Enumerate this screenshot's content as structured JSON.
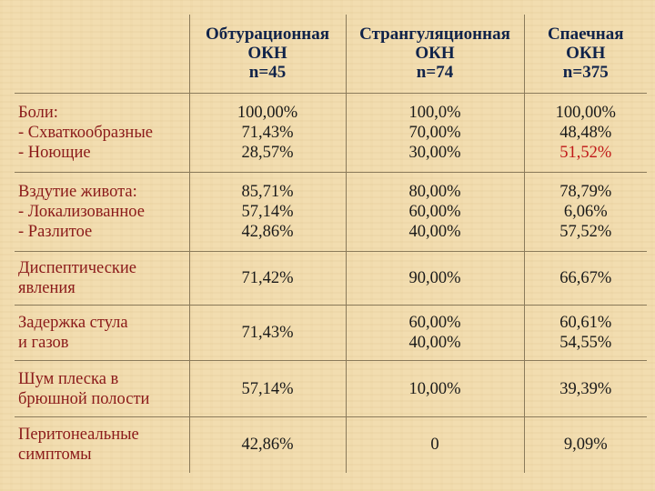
{
  "header": {
    "col1": [
      "Обтурационная",
      "ОКН",
      "n=45"
    ],
    "col2": [
      "Странгуляционная",
      "ОКН",
      "n=74"
    ],
    "col3": [
      "Спаечная",
      "ОКН",
      "n=375"
    ]
  },
  "rows": [
    {
      "label": [
        "Боли:",
        "- Схваткообразные",
        "- Ноющие"
      ],
      "col1": [
        "100,00%",
        "71,43%",
        "28,57%"
      ],
      "col2": [
        "100,0%",
        "70,00%",
        "30,00%"
      ],
      "col3": [
        "100,00%",
        "48,48%",
        "51,52%"
      ]
    },
    {
      "label": [
        "Вздутие живота:",
        "- Локализованное",
        "- Разлитое"
      ],
      "col1": [
        "85,71%",
        "57,14%",
        "42,86%"
      ],
      "col2": [
        "80,00%",
        "60,00%",
        "40,00%"
      ],
      "col3": [
        "78,79%",
        "6,06%",
        "57,52%"
      ]
    },
    {
      "label": [
        "Диспептические",
        "явления"
      ],
      "col1": [
        "71,42%"
      ],
      "col2": [
        "90,00%"
      ],
      "col3": [
        "66,67%"
      ]
    },
    {
      "label": [
        "Задержка стула",
        "и газов"
      ],
      "col1": [
        "71,43%"
      ],
      "col2": [
        "60,00%",
        "40,00%"
      ],
      "col3": [
        "60,61%",
        "54,55%"
      ]
    },
    {
      "label": [
        "Шум плеска в",
        "брюшной полости"
      ],
      "col1": [
        "57,14%"
      ],
      "col2": [
        "10,00%"
      ],
      "col3": [
        "39,39%"
      ]
    },
    {
      "label": [
        "Перитонеальные",
        "симптомы"
      ],
      "col1": [
        "42,86%"
      ],
      "col2": [
        "0"
      ],
      "col3": [
        "9,09%"
      ]
    }
  ],
  "colors": {
    "background": "#f2ddb0",
    "header_text": "#10234a",
    "label_text": "#8b1a1a",
    "highlight_value": "#c01818",
    "grid": "#8a7a5a"
  }
}
